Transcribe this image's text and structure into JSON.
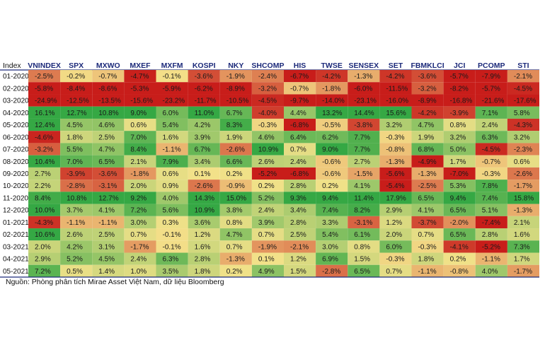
{
  "chart_data": {
    "type": "heatmap",
    "row_header": "Index",
    "columns": [
      "VNINDEX",
      "SPX",
      "MXWO",
      "MXEF",
      "MXFM",
      "KOSPI",
      "NKY",
      "SHCOMP",
      "HIS",
      "TWSE",
      "SENSEX",
      "SET",
      "FBMKLCI",
      "JCI",
      "PCOMP",
      "STI"
    ],
    "rows": [
      "01-2020",
      "02-2020",
      "03-2020",
      "04-2020",
      "05-2020",
      "06-2020",
      "07-2020",
      "08-2020",
      "09-2020",
      "10-2020",
      "11-2020",
      "12-2020",
      "01-2021",
      "02-2021",
      "03-2021",
      "04-2021",
      "05-2021"
    ],
    "values": [
      [
        -2.5,
        -0.2,
        -0.7,
        -4.7,
        -0.1,
        -3.6,
        -1.9,
        -2.4,
        -6.7,
        -4.2,
        -1.3,
        -4.2,
        -3.6,
        -5.7,
        -7.9,
        -2.1
      ],
      [
        -5.8,
        -8.4,
        -8.6,
        -5.3,
        -5.9,
        -6.2,
        -8.9,
        -3.2,
        -0.7,
        -1.8,
        -6.0,
        -11.5,
        -3.2,
        -8.2,
        -5.7,
        -4.5
      ],
      [
        -24.9,
        -12.5,
        -13.5,
        -15.6,
        -23.2,
        -11.7,
        -10.5,
        -4.5,
        -9.7,
        -14.0,
        -23.1,
        -16.0,
        -8.9,
        -16.8,
        -21.6,
        -17.6
      ],
      [
        16.1,
        12.7,
        10.8,
        9.0,
        6.0,
        11.0,
        6.7,
        -4.0,
        4.4,
        13.2,
        14.4,
        15.6,
        -4.2,
        -3.9,
        7.1,
        5.8
      ],
      [
        12.4,
        4.5,
        4.6,
        0.6,
        5.4,
        4.2,
        8.3,
        -0.3,
        -6.8,
        -0.5,
        -3.8,
        3.2,
        4.7,
        0.8,
        2.4,
        -4.3
      ],
      [
        -4.6,
        1.8,
        2.5,
        7.0,
        1.6,
        3.9,
        1.9,
        4.6,
        6.4,
        6.2,
        7.7,
        -0.3,
        1.9,
        3.2,
        6.3,
        3.2
      ],
      [
        -3.2,
        5.5,
        4.7,
        8.4,
        -1.1,
        6.7,
        -2.6,
        10.9,
        0.7,
        9.0,
        7.7,
        -0.8,
        6.8,
        5.0,
        -4.5,
        -2.3
      ],
      [
        10.4,
        7.0,
        6.5,
        2.1,
        7.9,
        3.4,
        6.6,
        2.6,
        2.4,
        -0.6,
        2.7,
        -1.3,
        -4.9,
        1.7,
        -0.7,
        0.6
      ],
      [
        2.7,
        -3.9,
        -3.6,
        -1.8,
        0.6,
        0.1,
        0.2,
        -5.2,
        -6.8,
        -0.6,
        -1.5,
        -5.6,
        -1.3,
        -7.0,
        -0.3,
        -2.6
      ],
      [
        2.2,
        -2.8,
        -3.1,
        2.0,
        0.9,
        -2.6,
        -0.9,
        0.2,
        2.8,
        0.2,
        4.1,
        -5.4,
        -2.5,
        5.3,
        7.8,
        -1.7
      ],
      [
        8.4,
        10.8,
        12.7,
        9.2,
        4.0,
        14.3,
        15.0,
        5.2,
        9.3,
        9.4,
        11.4,
        17.9,
        6.5,
        9.4,
        7.4,
        15.8
      ],
      [
        10.0,
        3.7,
        4.1,
        7.2,
        5.6,
        10.9,
        3.8,
        2.4,
        3.4,
        7.4,
        8.2,
        2.9,
        4.1,
        6.5,
        5.1,
        -1.3
      ],
      [
        -4.3,
        -1.1,
        -1.1,
        3.0,
        0.3,
        3.6,
        0.8,
        3.9,
        2.8,
        3.3,
        -3.1,
        1.2,
        -3.7,
        -2.0,
        -7.4,
        2.1
      ],
      [
        10.6,
        2.6,
        2.5,
        0.7,
        -0.1,
        1.2,
        4.7,
        0.7,
        2.5,
        5.4,
        6.1,
        2.0,
        0.7,
        6.5,
        2.8,
        1.6
      ],
      [
        2.0,
        4.2,
        3.1,
        -1.7,
        -0.1,
        1.6,
        0.7,
        -1.9,
        -2.1,
        3.0,
        0.8,
        6.0,
        -0.3,
        -4.1,
        -5.2,
        7.3
      ],
      [
        2.9,
        5.2,
        4.5,
        2.4,
        6.3,
        2.8,
        -1.3,
        0.1,
        1.2,
        6.9,
        1.5,
        -0.3,
        1.8,
        0.2,
        -1.1,
        1.7
      ],
      [
        7.2,
        0.5,
        1.4,
        1.0,
        3.5,
        1.8,
        0.2,
        4.9,
        1.5,
        -2.8,
        6.5,
        0.7,
        -1.1,
        -0.8,
        4.0,
        -1.7
      ]
    ],
    "value_suffix": "%",
    "color_scale": {
      "low": "#c81d1a",
      "mid": "#f4e28a",
      "high": "#35a844"
    },
    "header_color": "#1c2a7a",
    "border_color": "#1c2a7a"
  },
  "source_note": "Nguồn: Phòng phân tích Mirae Asset Việt Nam, dữ liệu Bloomberg"
}
